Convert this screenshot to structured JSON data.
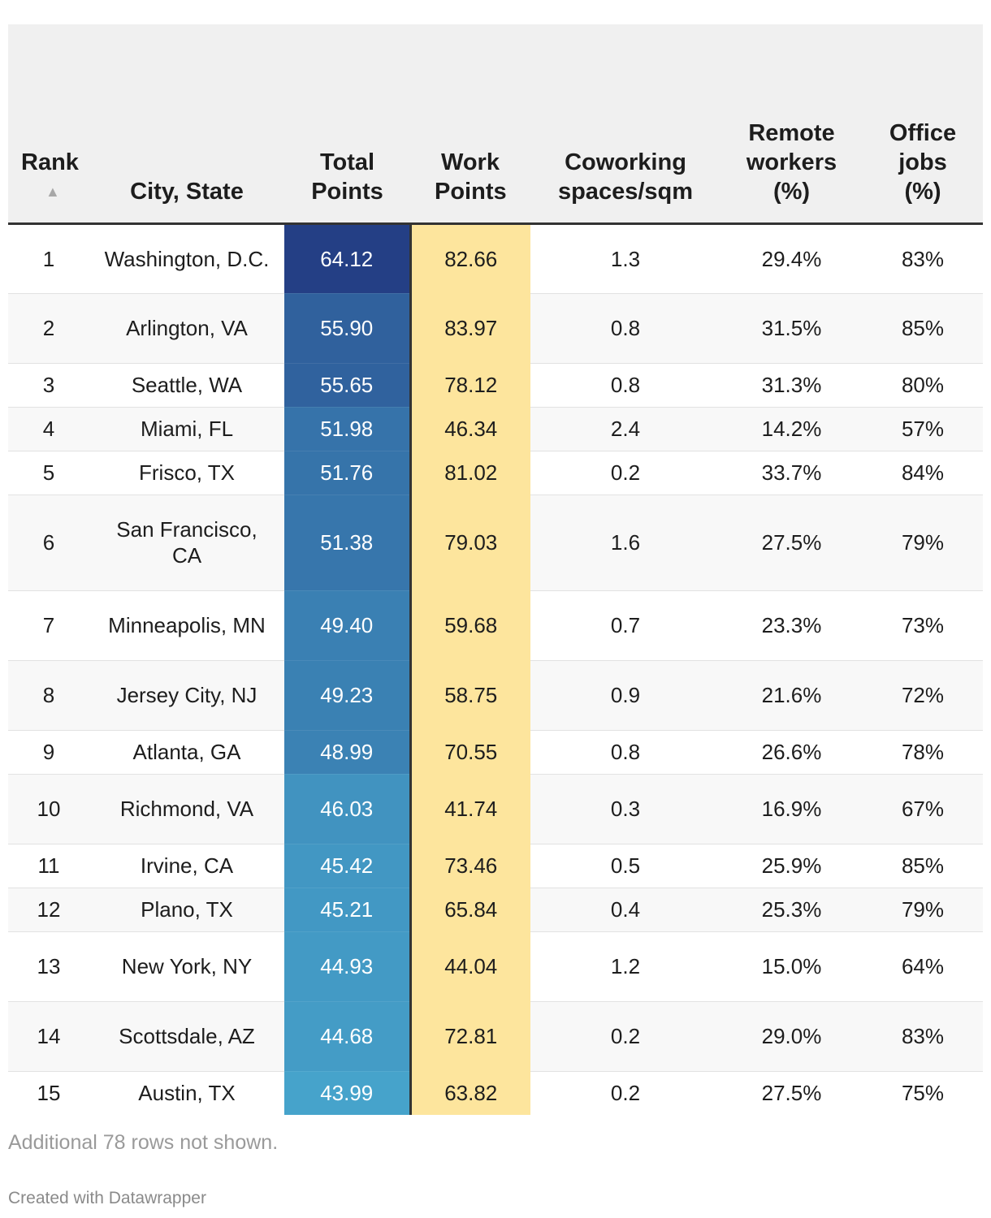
{
  "chart_data": {
    "type": "table",
    "columns": [
      {
        "key": "rank",
        "label": "Rank"
      },
      {
        "key": "city",
        "label": "City, State"
      },
      {
        "key": "total",
        "label": "Total Points"
      },
      {
        "key": "work",
        "label": "Work Points"
      },
      {
        "key": "cowork",
        "label": "Coworking spaces/sqm"
      },
      {
        "key": "remote",
        "label": "Remote workers (%)"
      },
      {
        "key": "office",
        "label": "Office jobs (%)"
      }
    ],
    "sort_indicator": "▲",
    "rows": [
      {
        "rank": "1",
        "city": "Washington, D.C.",
        "total": "64.12",
        "work": "82.66",
        "cowork": "1.3",
        "remote": "29.4%",
        "office": "83%"
      },
      {
        "rank": "2",
        "city": "Arlington, VA",
        "total": "55.90",
        "work": "83.97",
        "cowork": "0.8",
        "remote": "31.5%",
        "office": "85%"
      },
      {
        "rank": "3",
        "city": "Seattle, WA",
        "total": "55.65",
        "work": "78.12",
        "cowork": "0.8",
        "remote": "31.3%",
        "office": "80%"
      },
      {
        "rank": "4",
        "city": "Miami, FL",
        "total": "51.98",
        "work": "46.34",
        "cowork": "2.4",
        "remote": "14.2%",
        "office": "57%"
      },
      {
        "rank": "5",
        "city": "Frisco, TX",
        "total": "51.76",
        "work": "81.02",
        "cowork": "0.2",
        "remote": "33.7%",
        "office": "84%"
      },
      {
        "rank": "6",
        "city": "San Francisco, CA",
        "total": "51.38",
        "work": "79.03",
        "cowork": "1.6",
        "remote": "27.5%",
        "office": "79%"
      },
      {
        "rank": "7",
        "city": "Minneapolis, MN",
        "total": "49.40",
        "work": "59.68",
        "cowork": "0.7",
        "remote": "23.3%",
        "office": "73%"
      },
      {
        "rank": "8",
        "city": "Jersey City, NJ",
        "total": "49.23",
        "work": "58.75",
        "cowork": "0.9",
        "remote": "21.6%",
        "office": "72%"
      },
      {
        "rank": "9",
        "city": "Atlanta, GA",
        "total": "48.99",
        "work": "70.55",
        "cowork": "0.8",
        "remote": "26.6%",
        "office": "78%"
      },
      {
        "rank": "10",
        "city": "Richmond, VA",
        "total": "46.03",
        "work": "41.74",
        "cowork": "0.3",
        "remote": "16.9%",
        "office": "67%"
      },
      {
        "rank": "11",
        "city": "Irvine, CA",
        "total": "45.42",
        "work": "73.46",
        "cowork": "0.5",
        "remote": "25.9%",
        "office": "85%"
      },
      {
        "rank": "12",
        "city": "Plano, TX",
        "total": "45.21",
        "work": "65.84",
        "cowork": "0.4",
        "remote": "25.3%",
        "office": "79%"
      },
      {
        "rank": "13",
        "city": "New York, NY",
        "total": "44.93",
        "work": "44.04",
        "cowork": "1.2",
        "remote": "15.0%",
        "office": "64%"
      },
      {
        "rank": "14",
        "city": "Scottsdale, AZ",
        "total": "44.68",
        "work": "72.81",
        "cowork": "0.2",
        "remote": "29.0%",
        "office": "83%"
      },
      {
        "rank": "15",
        "city": "Austin, TX",
        "total": "43.99",
        "work": "63.82",
        "cowork": "0.2",
        "remote": "27.5%",
        "office": "75%"
      }
    ],
    "total_color_scale": {
      "low": "#46a3cb",
      "high": "#243f85"
    },
    "work_color": "#fde59d"
  },
  "footer": {
    "note": "Additional 78 rows not shown.",
    "credit": "Created with Datawrapper"
  }
}
